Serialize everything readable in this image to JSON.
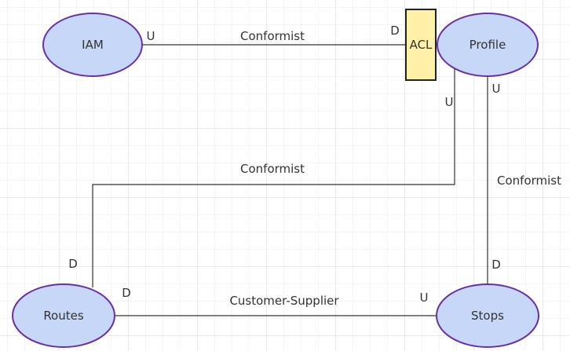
{
  "colors": {
    "node_fill": "#c6d7f7",
    "node_stroke": "#6a2fa8",
    "acl_fill": "#fff2a8",
    "acl_stroke": "#222222",
    "line": "#333333",
    "text": "#333333"
  },
  "nodes": {
    "iam": "IAM",
    "profile": "Profile",
    "routes": "Routes",
    "stops": "Stops",
    "acl": "ACL"
  },
  "edges": {
    "iam_profile": {
      "label": "Conformist",
      "upstream": "U",
      "downstream": "D"
    },
    "profile_routes": {
      "label": "Conformist",
      "upstream": "U",
      "downstream": "D"
    },
    "profile_stops": {
      "label": "Conformist",
      "upstream": "U",
      "downstream": "D"
    },
    "stops_routes": {
      "label": "Customer-Supplier",
      "upstream": "U",
      "downstream": "D"
    }
  }
}
